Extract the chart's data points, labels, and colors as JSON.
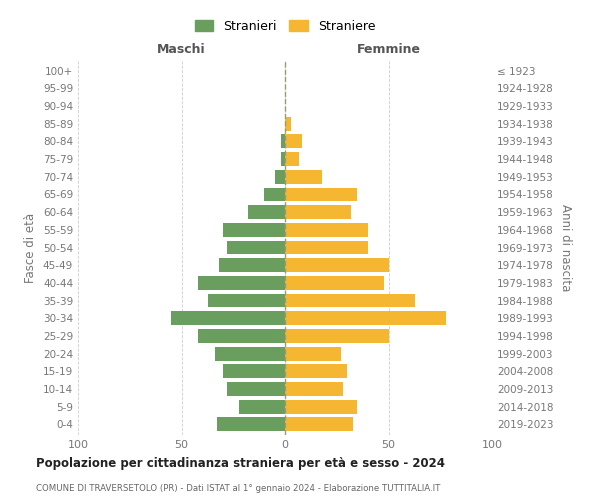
{
  "age_groups_bottom_to_top": [
    "0-4",
    "5-9",
    "10-14",
    "15-19",
    "20-24",
    "25-29",
    "30-34",
    "35-39",
    "40-44",
    "45-49",
    "50-54",
    "55-59",
    "60-64",
    "65-69",
    "70-74",
    "75-79",
    "80-84",
    "85-89",
    "90-94",
    "95-99",
    "100+"
  ],
  "birth_years_bottom_to_top": [
    "2019-2023",
    "2014-2018",
    "2009-2013",
    "2004-2008",
    "1999-2003",
    "1994-1998",
    "1989-1993",
    "1984-1988",
    "1979-1983",
    "1974-1978",
    "1969-1973",
    "1964-1968",
    "1959-1963",
    "1954-1958",
    "1949-1953",
    "1944-1948",
    "1939-1943",
    "1934-1938",
    "1929-1933",
    "1924-1928",
    "≤ 1923"
  ],
  "males_bottom_to_top": [
    33,
    22,
    28,
    30,
    34,
    42,
    55,
    37,
    42,
    32,
    28,
    30,
    18,
    10,
    5,
    2,
    2,
    0,
    0,
    0,
    0
  ],
  "females_bottom_to_top": [
    33,
    35,
    28,
    30,
    27,
    50,
    78,
    63,
    48,
    50,
    40,
    40,
    32,
    35,
    18,
    7,
    8,
    3,
    0,
    0,
    0
  ],
  "color_males": "#6a9e5e",
  "color_females": "#f5b731",
  "title": "Popolazione per cittadinanza straniera per età e sesso - 2024",
  "subtitle": "COMUNE DI TRAVERSETOLO (PR) - Dati ISTAT al 1° gennaio 2024 - Elaborazione TUTTITALIA.IT",
  "header_left": "Maschi",
  "header_right": "Femmine",
  "ylabel_left": "Fasce di età",
  "ylabel_right": "Anni di nascita",
  "legend_males": "Stranieri",
  "legend_females": "Straniere",
  "xlim": 100,
  "bg_color": "#ffffff",
  "grid_color": "#cccccc"
}
